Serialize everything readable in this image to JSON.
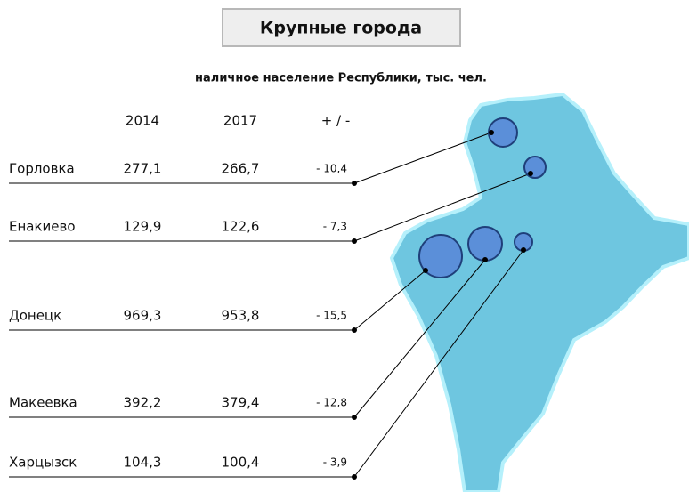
{
  "title": "Крупные города",
  "subtitle": "наличное население Республики, тыс. чел.",
  "columns": [
    "2014",
    "2017",
    "+ / -"
  ],
  "rows": [
    [
      "Горловка",
      "277,1",
      "266,7",
      "- 10,4"
    ],
    [
      "Енакиево",
      "129,9",
      "122,6",
      "- 7,3"
    ],
    [
      "Донецк",
      "969,3",
      "953,8",
      "- 15,5"
    ],
    [
      "Макеевка",
      "392,2",
      "379,4",
      "- 12,8"
    ],
    [
      "Харцызск",
      "104,3",
      "100,4",
      "- 3,9"
    ]
  ]
}
